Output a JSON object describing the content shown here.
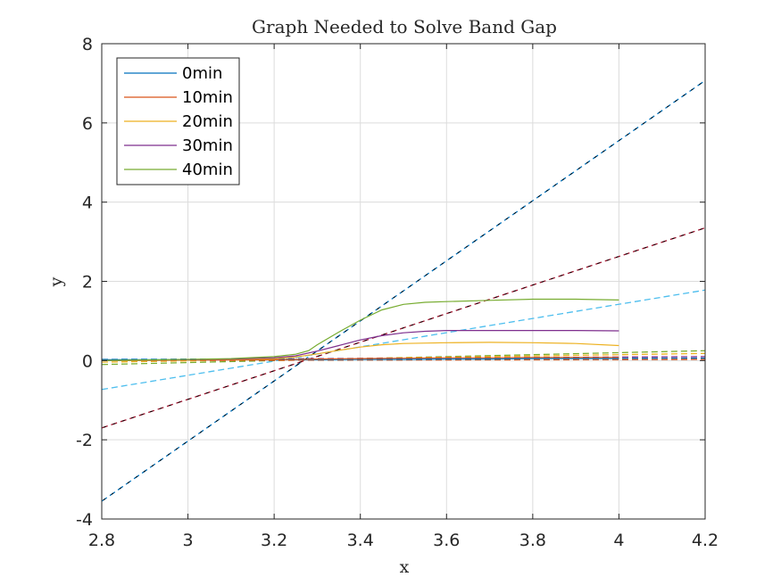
{
  "chart_data": {
    "type": "line",
    "title": "Graph Needed to Solve Band Gap",
    "xlabel": "x",
    "ylabel": "y",
    "xlim": [
      2.8,
      4.2
    ],
    "ylim": [
      -4,
      8
    ],
    "xticks": [
      2.8,
      3,
      3.2,
      3.4,
      3.6,
      3.8,
      4,
      4.2
    ],
    "yticks": [
      -4,
      -2,
      0,
      2,
      4,
      6,
      8
    ],
    "xtick_labels": [
      "2.8",
      "3",
      "3.2",
      "3.4",
      "3.6",
      "3.8",
      "4",
      "4.2"
    ],
    "ytick_labels": [
      "-4",
      "-2",
      "0",
      "2",
      "4",
      "6",
      "8"
    ],
    "grid": true,
    "legend_position": "top-left",
    "series": [
      {
        "name": "0min",
        "color": "#0072BD",
        "style": "solid",
        "x": [
          2.8,
          3.0,
          3.2,
          3.26,
          3.3,
          3.4,
          3.5,
          3.6,
          3.7,
          3.8,
          3.9,
          4.0
        ],
        "y": [
          0.02,
          0.02,
          0.02,
          0.02,
          0.02,
          0.03,
          0.03,
          0.04,
          0.04,
          0.05,
          0.05,
          0.05
        ]
      },
      {
        "name": "10min",
        "color": "#D95319",
        "style": "solid",
        "x": [
          2.8,
          3.0,
          3.2,
          3.26,
          3.3,
          3.4,
          3.5,
          3.6,
          3.7,
          3.8,
          3.9,
          4.0
        ],
        "y": [
          0.0,
          0.01,
          0.02,
          0.03,
          0.04,
          0.05,
          0.06,
          0.07,
          0.07,
          0.08,
          0.08,
          0.08
        ]
      },
      {
        "name": "20min",
        "color": "#EDB120",
        "style": "solid",
        "x": [
          2.8,
          3.0,
          3.1,
          3.2,
          3.25,
          3.3,
          3.35,
          3.4,
          3.45,
          3.5,
          3.6,
          3.7,
          3.8,
          3.9,
          4.0
        ],
        "y": [
          0.0,
          0.01,
          0.03,
          0.05,
          0.09,
          0.17,
          0.26,
          0.34,
          0.4,
          0.43,
          0.45,
          0.46,
          0.45,
          0.43,
          0.38
        ]
      },
      {
        "name": "30min",
        "color": "#7E2F8E",
        "style": "solid",
        "x": [
          2.8,
          3.0,
          3.1,
          3.2,
          3.25,
          3.3,
          3.35,
          3.4,
          3.45,
          3.5,
          3.55,
          3.6,
          3.7,
          3.8,
          3.9,
          4.0
        ],
        "y": [
          0.0,
          0.02,
          0.04,
          0.07,
          0.12,
          0.24,
          0.38,
          0.52,
          0.63,
          0.7,
          0.74,
          0.76,
          0.76,
          0.76,
          0.76,
          0.75
        ]
      },
      {
        "name": "40min",
        "color": "#77AC30",
        "style": "solid",
        "x": [
          2.8,
          3.0,
          3.1,
          3.2,
          3.25,
          3.28,
          3.3,
          3.35,
          3.4,
          3.45,
          3.5,
          3.55,
          3.6,
          3.7,
          3.8,
          3.9,
          4.0
        ],
        "y": [
          0.0,
          0.03,
          0.05,
          0.1,
          0.16,
          0.25,
          0.4,
          0.72,
          1.02,
          1.28,
          1.42,
          1.47,
          1.49,
          1.52,
          1.55,
          1.55,
          1.53
        ]
      }
    ],
    "fit_lines": [
      {
        "color": "#0072BD",
        "overlay_color": "#000000",
        "x": [
          2.8,
          4.2
        ],
        "y": [
          -3.55,
          7.07
        ]
      },
      {
        "color": "#A2142F",
        "overlay_color": "#000000",
        "x": [
          2.8,
          4.2
        ],
        "y": [
          -1.7,
          3.35
        ]
      },
      {
        "color": "#4DBEEE",
        "overlay_color": "",
        "x": [
          2.8,
          4.2
        ],
        "y": [
          -0.73,
          1.78
        ]
      },
      {
        "color": "#77AC30",
        "overlay_color": "",
        "x": [
          2.8,
          4.2
        ],
        "y": [
          -0.1,
          0.25
        ]
      },
      {
        "color": "#EDB120",
        "overlay_color": "",
        "x": [
          2.8,
          4.2
        ],
        "y": [
          -0.04,
          0.18
        ]
      },
      {
        "color": "#7E2F8E",
        "overlay_color": "",
        "x": [
          2.8,
          4.2
        ],
        "y": [
          0.02,
          0.1
        ]
      },
      {
        "color": "#0072BD",
        "overlay_color": "",
        "x": [
          2.8,
          4.2
        ],
        "y": [
          0.03,
          0.06
        ]
      },
      {
        "color": "#D95319",
        "overlay_color": "",
        "x": [
          2.8,
          4.2
        ],
        "y": [
          0.0,
          0.03
        ]
      }
    ]
  }
}
